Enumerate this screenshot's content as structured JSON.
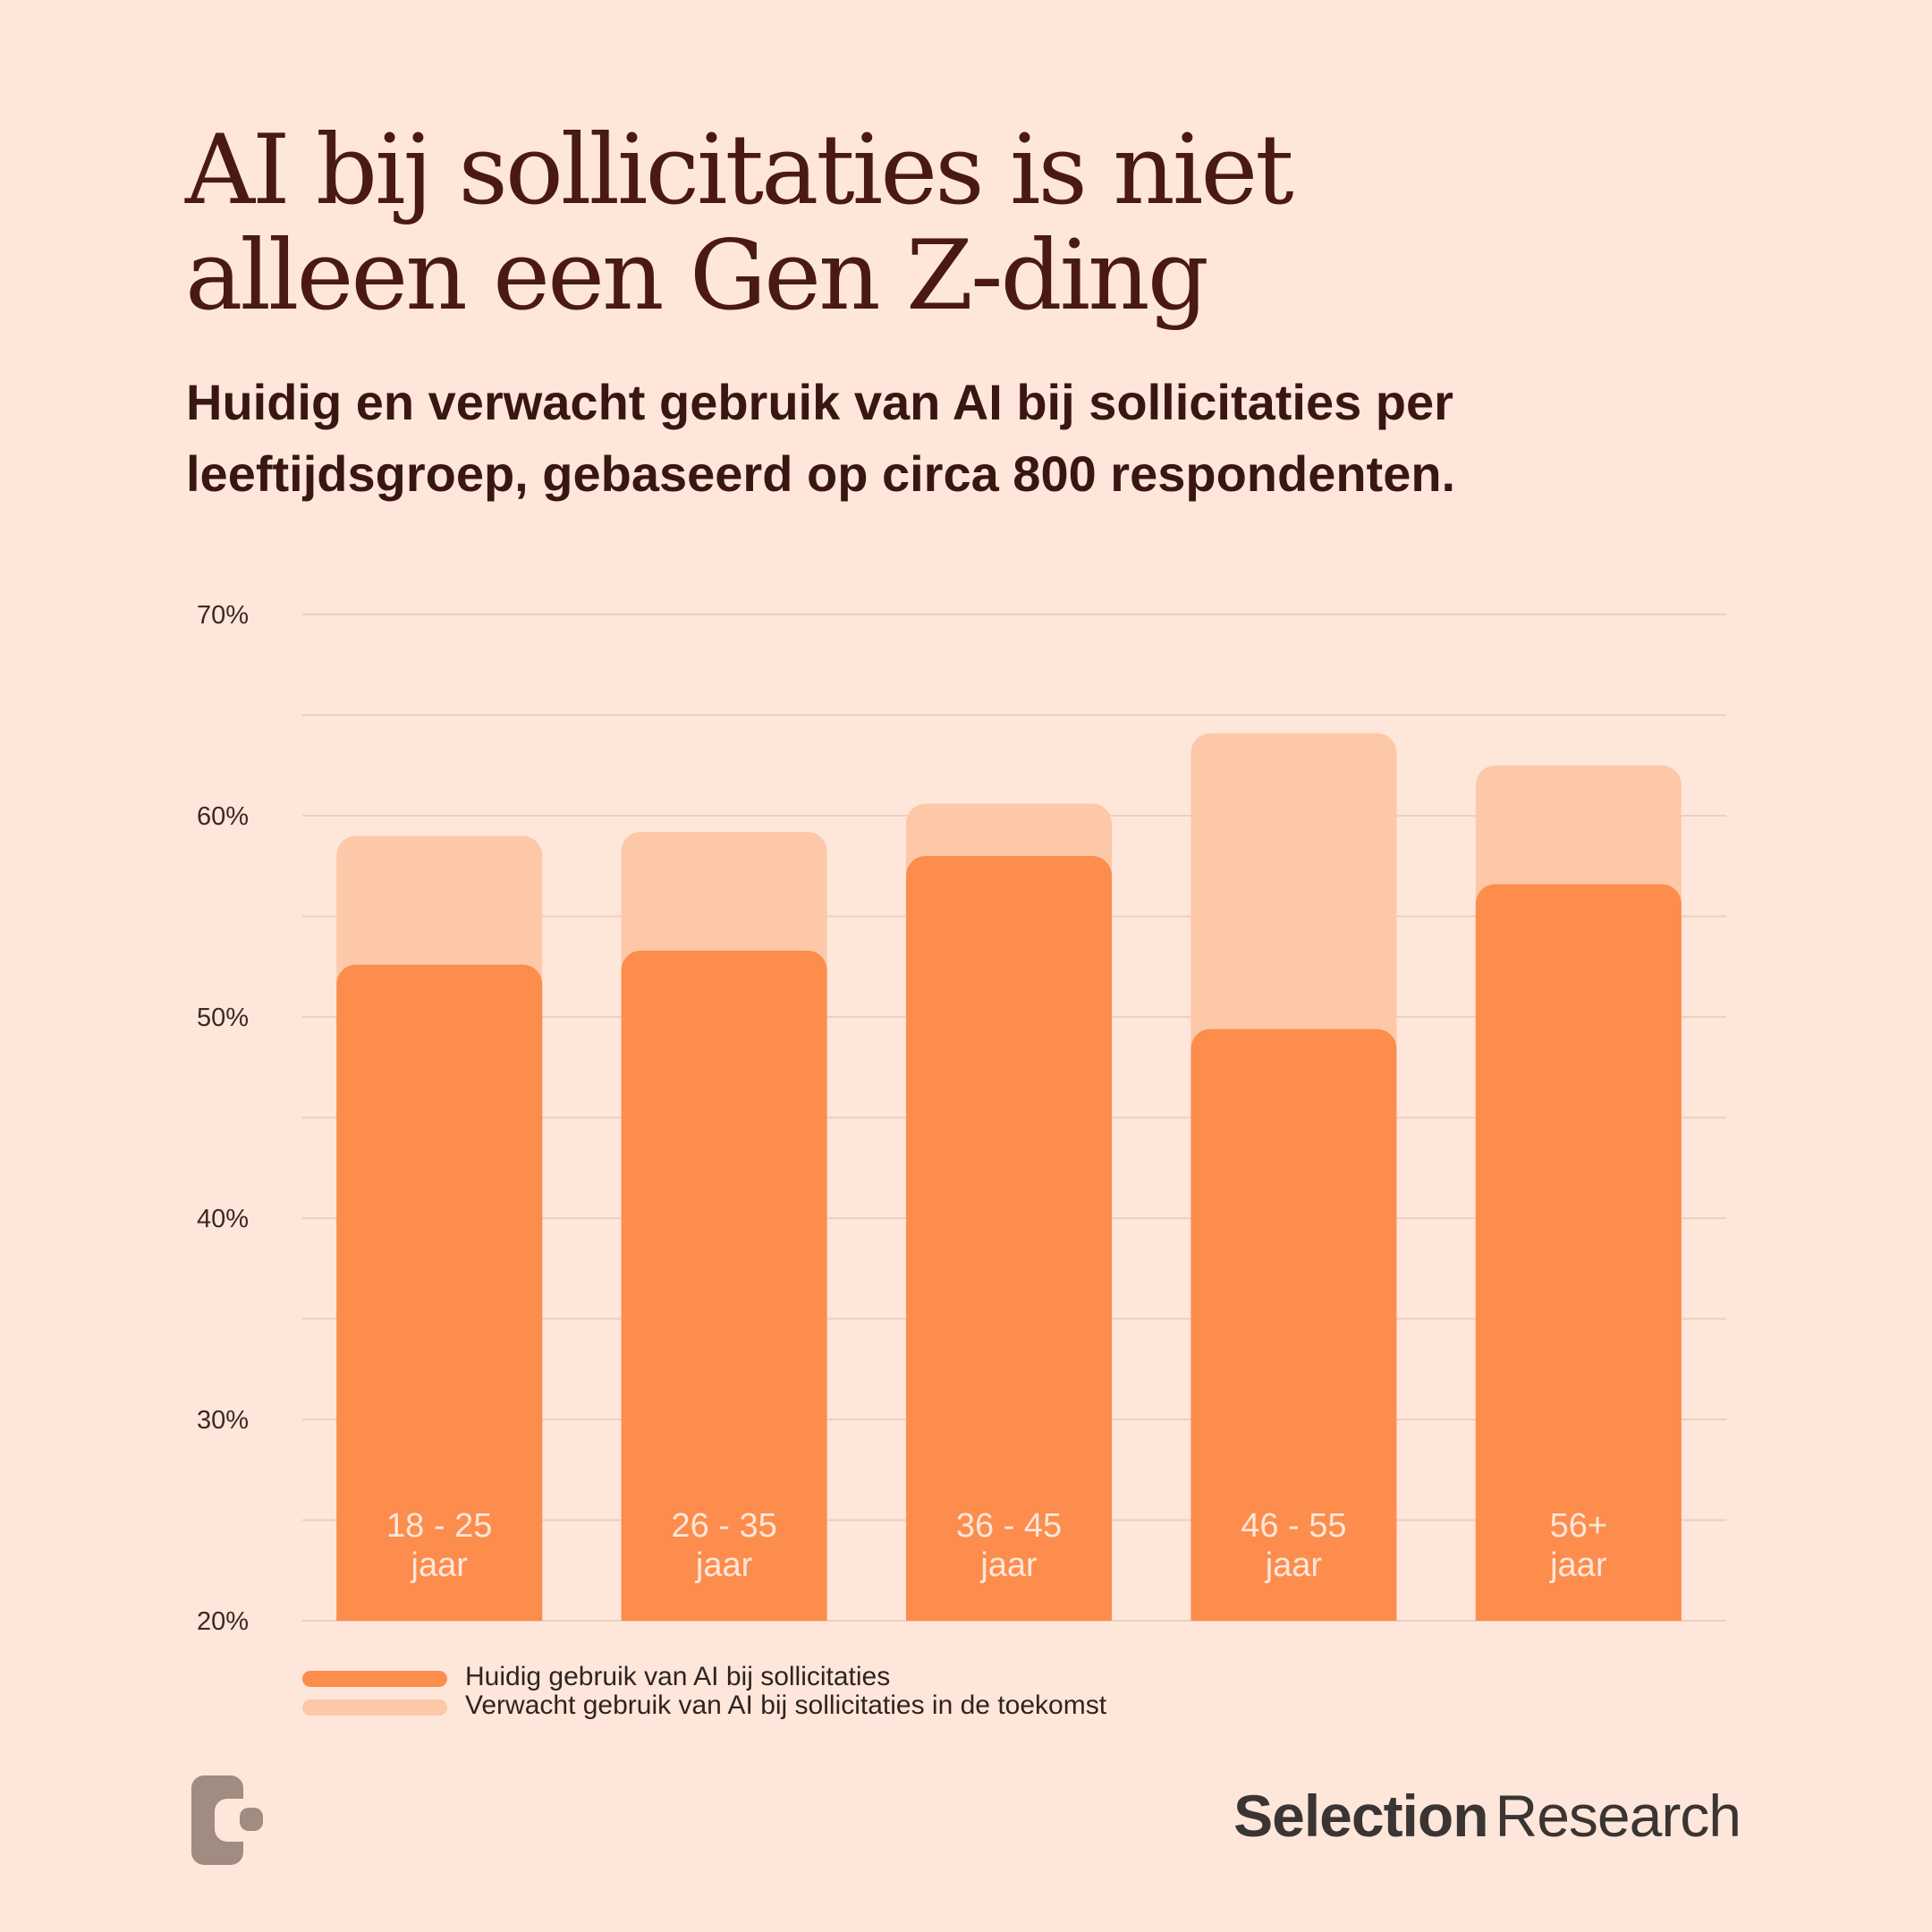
{
  "header": {
    "title_line1": "AI bij sollicitaties is niet",
    "title_line2": "alleen een Gen Z-ding",
    "subtitle_line1": "Huidig en verwacht gebruik van AI bij sollicitaties per",
    "subtitle_line2": "leeftijdsgroep, gebaseerd op circa 800 respondenten."
  },
  "chart_data": {
    "type": "bar",
    "stacking": "overlay",
    "categories": [
      "18 - 25 jaar",
      "26 - 35 jaar",
      "36 - 45 jaar",
      "46 - 55 jaar",
      "56+ jaar"
    ],
    "category_lines": [
      [
        "18 - 25",
        "jaar"
      ],
      [
        "26 - 35",
        "jaar"
      ],
      [
        "36 - 45",
        "jaar"
      ],
      [
        "46 - 55",
        "jaar"
      ],
      [
        "56+",
        "jaar"
      ]
    ],
    "series": [
      {
        "name": "Huidig gebruik van AI bij sollicitaties",
        "values": [
          52.6,
          53.3,
          58.0,
          49.4,
          56.6
        ],
        "color": "#FC8D4C"
      },
      {
        "name": "Verwacht gebruik van AI bij sollicitaties in de toekomst",
        "values": [
          59.0,
          59.2,
          60.6,
          64.1,
          62.5
        ],
        "color": "#FDC8A8"
      }
    ],
    "y_ticks": [
      20,
      30,
      40,
      50,
      60,
      70
    ],
    "y_tick_labels": [
      "20%",
      "30%",
      "40%",
      "50%",
      "60%",
      "70%"
    ],
    "ylim": [
      20,
      70
    ],
    "grid": true,
    "legend_position": "bottom-left",
    "grid_color": "#EBCFC1",
    "label_color": "#FFE6DA"
  },
  "legend": {
    "current_label": "Huidig gebruik van AI bij sollicitaties",
    "expected_label": "Verwacht gebruik van AI bij sollicitaties in de toekomst"
  },
  "brand": {
    "name_bold": "Selection",
    "name_regular": "Research",
    "logo_icon": "selection-research-logo-icon",
    "logo_color": "#A08C81"
  }
}
